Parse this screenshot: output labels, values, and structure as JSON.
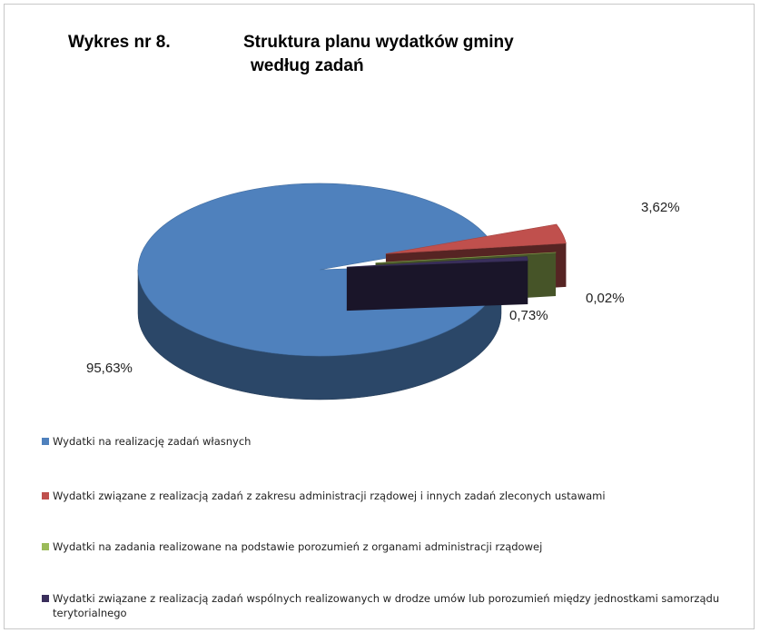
{
  "chart_data": {
    "type": "pie",
    "title": "Wykres nr 8.",
    "subtitle": [
      "Struktura planu wydatków  gminy",
      "według zadań"
    ],
    "categories": [
      "Wydatki na realizację zadań własnych",
      "Wydatki związane z realizacją zadań z zakresu administracji rządowej i innych zadań zleconych ustawami",
      "Wydatki na zadania realizowane na podstawie porozumień z organami administracji rządowej",
      "Wydatki związane z realizacją zadań wspólnych realizowanych w drodze umów lub porozumień między jednostkami samorządu terytorialnego"
    ],
    "values": [
      95.63,
      3.62,
      0.02,
      0.73
    ],
    "value_labels": [
      "95,63%",
      "3,62%",
      "0,02%",
      "0,73%"
    ],
    "colors": [
      "#4f81bd",
      "#c0504d",
      "#9bbb59",
      "#3a2f5c"
    ],
    "legend": "bottom"
  }
}
